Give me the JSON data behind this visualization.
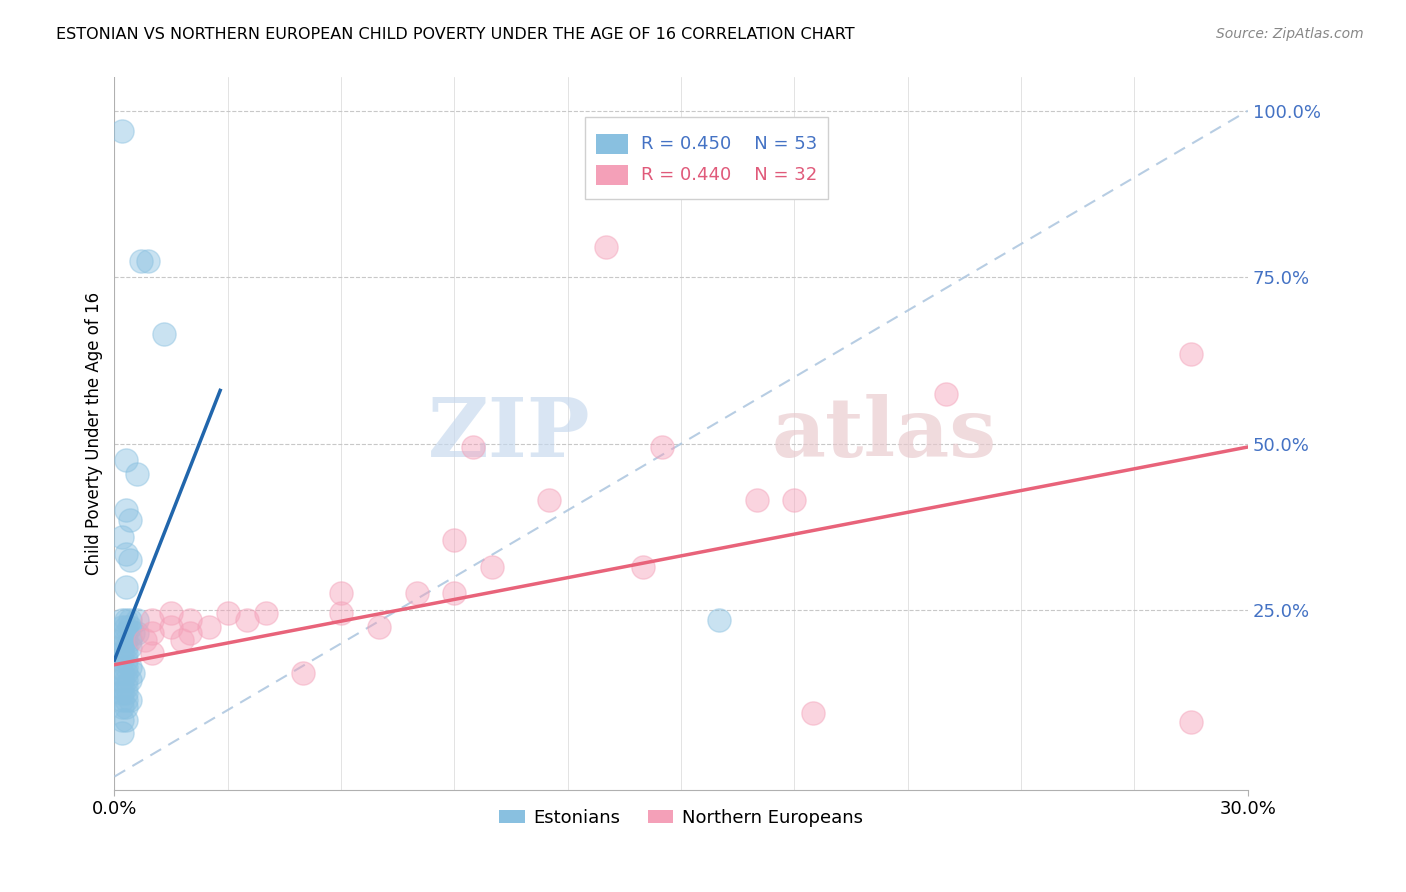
{
  "title": "ESTONIAN VS NORTHERN EUROPEAN CHILD POVERTY UNDER THE AGE OF 16 CORRELATION CHART",
  "source_text": "Source: ZipAtlas.com",
  "ylabel": "Child Poverty Under the Age of 16",
  "xmin": 0.0,
  "xmax": 0.3,
  "ymin": -0.02,
  "ymax": 1.05,
  "blue_r": "0.450",
  "blue_n": "53",
  "pink_r": "0.440",
  "pink_n": "32",
  "blue_color": "#89c0e0",
  "pink_color": "#f4a0b8",
  "blue_line_color": "#2166ac",
  "pink_line_color": "#e8637a",
  "legend_labels": [
    "Estonians",
    "Northern Europeans"
  ],
  "blue_points": [
    [
      0.002,
      0.97
    ],
    [
      0.007,
      0.775
    ],
    [
      0.009,
      0.775
    ],
    [
      0.013,
      0.665
    ],
    [
      0.003,
      0.475
    ],
    [
      0.006,
      0.455
    ],
    [
      0.003,
      0.4
    ],
    [
      0.004,
      0.385
    ],
    [
      0.002,
      0.36
    ],
    [
      0.003,
      0.335
    ],
    [
      0.004,
      0.325
    ],
    [
      0.003,
      0.285
    ],
    [
      0.002,
      0.235
    ],
    [
      0.003,
      0.235
    ],
    [
      0.004,
      0.235
    ],
    [
      0.006,
      0.235
    ],
    [
      0.002,
      0.225
    ],
    [
      0.003,
      0.225
    ],
    [
      0.004,
      0.225
    ],
    [
      0.003,
      0.215
    ],
    [
      0.005,
      0.215
    ],
    [
      0.006,
      0.215
    ],
    [
      0.002,
      0.205
    ],
    [
      0.003,
      0.205
    ],
    [
      0.004,
      0.205
    ],
    [
      0.002,
      0.195
    ],
    [
      0.003,
      0.195
    ],
    [
      0.004,
      0.195
    ],
    [
      0.002,
      0.185
    ],
    [
      0.003,
      0.185
    ],
    [
      0.002,
      0.175
    ],
    [
      0.003,
      0.175
    ],
    [
      0.003,
      0.165
    ],
    [
      0.004,
      0.165
    ],
    [
      0.002,
      0.155
    ],
    [
      0.003,
      0.155
    ],
    [
      0.005,
      0.155
    ],
    [
      0.002,
      0.145
    ],
    [
      0.003,
      0.145
    ],
    [
      0.004,
      0.145
    ],
    [
      0.002,
      0.135
    ],
    [
      0.003,
      0.135
    ],
    [
      0.002,
      0.125
    ],
    [
      0.003,
      0.125
    ],
    [
      0.002,
      0.115
    ],
    [
      0.003,
      0.115
    ],
    [
      0.004,
      0.115
    ],
    [
      0.002,
      0.105
    ],
    [
      0.003,
      0.105
    ],
    [
      0.002,
      0.085
    ],
    [
      0.003,
      0.085
    ],
    [
      0.002,
      0.065
    ],
    [
      0.16,
      0.235
    ]
  ],
  "pink_points": [
    [
      0.13,
      0.795
    ],
    [
      0.285,
      0.635
    ],
    [
      0.22,
      0.575
    ],
    [
      0.095,
      0.495
    ],
    [
      0.145,
      0.495
    ],
    [
      0.115,
      0.415
    ],
    [
      0.17,
      0.415
    ],
    [
      0.18,
      0.415
    ],
    [
      0.09,
      0.355
    ],
    [
      0.1,
      0.315
    ],
    [
      0.14,
      0.315
    ],
    [
      0.06,
      0.275
    ],
    [
      0.08,
      0.275
    ],
    [
      0.09,
      0.275
    ],
    [
      0.015,
      0.245
    ],
    [
      0.03,
      0.245
    ],
    [
      0.04,
      0.245
    ],
    [
      0.06,
      0.245
    ],
    [
      0.01,
      0.235
    ],
    [
      0.02,
      0.235
    ],
    [
      0.035,
      0.235
    ],
    [
      0.015,
      0.225
    ],
    [
      0.025,
      0.225
    ],
    [
      0.07,
      0.225
    ],
    [
      0.01,
      0.215
    ],
    [
      0.02,
      0.215
    ],
    [
      0.008,
      0.205
    ],
    [
      0.018,
      0.205
    ],
    [
      0.01,
      0.185
    ],
    [
      0.05,
      0.155
    ],
    [
      0.185,
      0.095
    ],
    [
      0.285,
      0.082
    ]
  ],
  "watermark_text": "ZIPatlas",
  "ytick_values_right": [
    0.25,
    0.5,
    0.75,
    1.0
  ],
  "ytick_labels_right": [
    "25.0%",
    "50.0%",
    "75.0%",
    "100.0%"
  ],
  "blue_line_x": [
    0.0,
    0.028
  ],
  "blue_line_y": [
    0.175,
    0.58
  ],
  "pink_line_x": [
    0.0,
    0.3
  ],
  "pink_line_y": [
    0.168,
    0.495
  ],
  "diag_line_x": [
    0.0,
    0.3
  ],
  "diag_line_y": [
    0.0,
    1.0
  ]
}
